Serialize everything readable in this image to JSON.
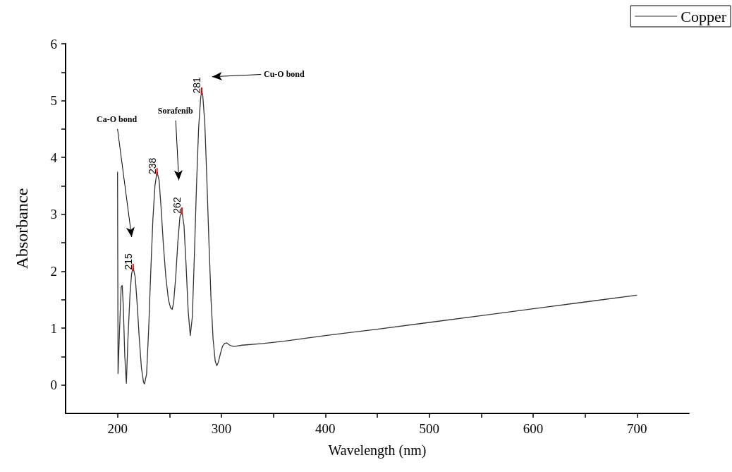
{
  "chart_data": {
    "type": "line",
    "xlabel": "Wavelength (nm)",
    "ylabel": "Absorbance",
    "legend": "top right",
    "grid": false,
    "marker": "none",
    "line_style": "solid",
    "xlim": [
      150,
      750
    ],
    "xticks": [
      200,
      {
        "value": 250,
        "label": null
      },
      300,
      {
        "value": 350,
        "label": null
      },
      400,
      {
        "value": 450,
        "label": null
      },
      500,
      {
        "value": 550,
        "label": null
      },
      600,
      {
        "value": 650,
        "label": null
      },
      700
    ],
    "ylim": [
      -0.5,
      6
    ],
    "yticks": [
      0,
      {
        "value": 0.5,
        "label": null
      },
      1,
      {
        "value": 1.5,
        "label": null
      },
      2,
      {
        "value": 2.5,
        "label": null
      },
      3,
      {
        "value": 3.5,
        "label": null
      },
      4,
      {
        "value": 4.5,
        "label": null
      },
      5,
      {
        "value": 5.5,
        "label": null
      },
      6
    ],
    "series": [
      {
        "name": "Copper",
        "color": "#333333",
        "x": [
          200,
          200.5,
          202,
          203.5,
          204.5,
          205.5,
          207,
          208.5,
          210,
          212,
          213.5,
          215,
          217,
          219,
          221,
          223,
          225,
          226,
          228,
          230,
          232,
          234,
          236,
          238,
          240,
          242,
          244,
          246.5,
          249,
          251,
          252.6,
          254,
          256,
          258,
          260,
          262,
          264,
          266,
          268,
          270,
          272,
          274,
          276,
          278,
          280,
          281,
          282,
          284,
          286,
          288,
          290,
          292,
          294,
          295.5,
          297,
          299,
          301,
          303,
          305,
          308,
          311,
          313,
          320,
          340,
          360,
          380,
          400,
          450,
          500,
          550,
          600,
          650,
          700
        ],
        "values": [
          3.75,
          0.2,
          1.0,
          1.72,
          1.75,
          1.4,
          0.5,
          0.03,
          0.8,
          1.6,
          1.95,
          2.07,
          1.9,
          1.4,
          0.8,
          0.3,
          0.05,
          0.02,
          0.2,
          1.0,
          2.0,
          2.9,
          3.5,
          3.75,
          3.6,
          3.1,
          2.5,
          1.9,
          1.5,
          1.36,
          1.33,
          1.45,
          1.9,
          2.5,
          2.95,
          3.06,
          2.8,
          2.1,
          1.3,
          0.87,
          1.2,
          2.3,
          3.5,
          4.5,
          5.05,
          5.17,
          5.1,
          4.6,
          3.6,
          2.5,
          1.5,
          0.8,
          0.42,
          0.34,
          0.4,
          0.55,
          0.68,
          0.73,
          0.74,
          0.7,
          0.68,
          0.68,
          0.7,
          0.73,
          0.77,
          0.82,
          0.87,
          0.98,
          1.1,
          1.22,
          1.34,
          1.46,
          1.58
        ]
      }
    ],
    "annotations": [
      {
        "text": "215",
        "x": 215,
        "y": 2.07
      },
      {
        "text": "238",
        "x": 238,
        "y": 3.75
      },
      {
        "text": "262",
        "x": 262,
        "y": 3.06
      },
      {
        "text": "281",
        "x": 281,
        "y": 5.17
      },
      "Ca-O bond",
      "Sorafenib",
      "Cu-O bond"
    ]
  }
}
